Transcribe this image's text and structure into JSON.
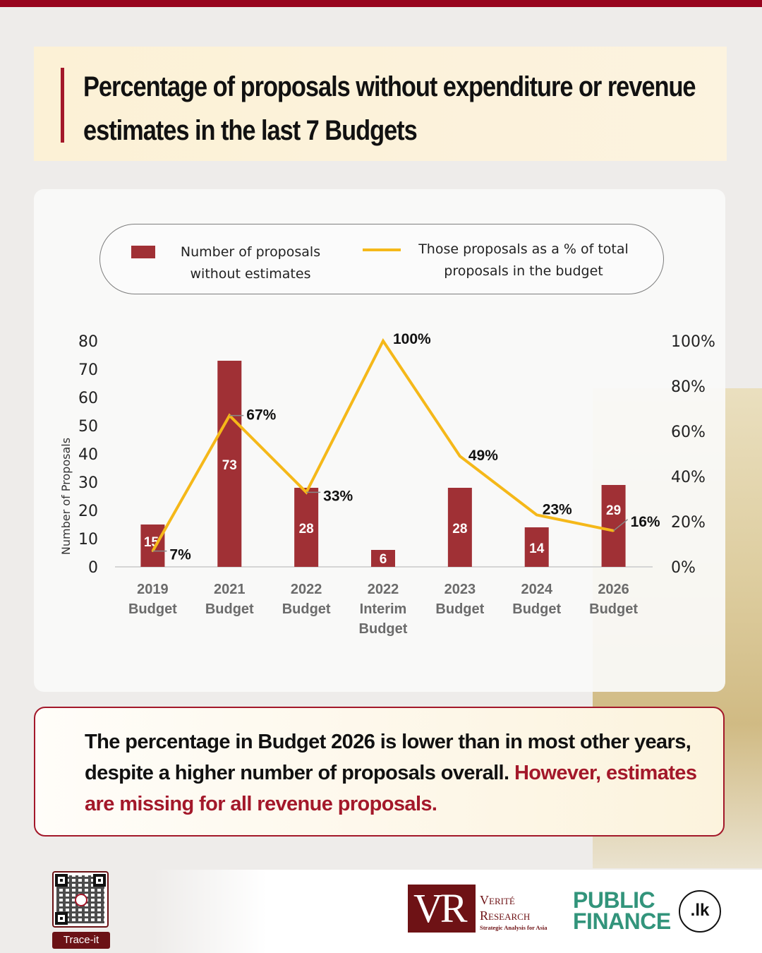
{
  "title": "Percentage of proposals without expenditure or revenue estimates in the last 7 Budgets",
  "legend": {
    "bar_label": "Number of proposals without estimates",
    "line_label": "Those proposals as a % of total proposals in the budget"
  },
  "summary": {
    "line1": "The percentage in Budget 2026 is lower than in most other years, despite a higher number of proposals overall.",
    "highlight": "However, estimates are missing for all revenue proposals."
  },
  "footer": {
    "qr_label": "Trace-it",
    "vr_mark": "VR",
    "vr_name_1": "Verité",
    "vr_name_2": "Research",
    "vr_tagline": "Strategic Analysis for Asia",
    "pf_line1": "PUBLIC",
    "pf_line2": "FINANCE",
    "pf_badge": ".lk"
  },
  "colors": {
    "bar": "#a03035",
    "line": "#f5b819",
    "accent": "#a3182a"
  },
  "chart_data": {
    "type": "bar",
    "title": "Percentage of proposals without expenditure or revenue estimates in the last 7 Budgets",
    "categories": [
      [
        "2019",
        "Budget"
      ],
      [
        "2021",
        "Budget"
      ],
      [
        "2022",
        "Budget"
      ],
      [
        "2022",
        "Interim",
        "Budget"
      ],
      [
        "2023",
        "Budget"
      ],
      [
        "2024",
        "Budget"
      ],
      [
        "2026",
        "Budget"
      ]
    ],
    "series": [
      {
        "name": "Number of proposals without estimates",
        "type": "bar",
        "axis": "left",
        "values": [
          15,
          73,
          28,
          6,
          28,
          14,
          29
        ]
      },
      {
        "name": "Those proposals as a % of total proposals in the budget",
        "type": "line",
        "axis": "right",
        "values": [
          7,
          67,
          33,
          100,
          49,
          23,
          16
        ]
      }
    ],
    "ylabel": "Number of Proposals",
    "ylim": [
      0,
      80
    ],
    "yticks": [
      0,
      10,
      20,
      30,
      40,
      50,
      60,
      70,
      80
    ],
    "y2lim": [
      0,
      100
    ],
    "y2ticks": [
      "0%",
      "20%",
      "40%",
      "60%",
      "80%",
      "100%"
    ],
    "grid": false,
    "legend_position": "top"
  }
}
